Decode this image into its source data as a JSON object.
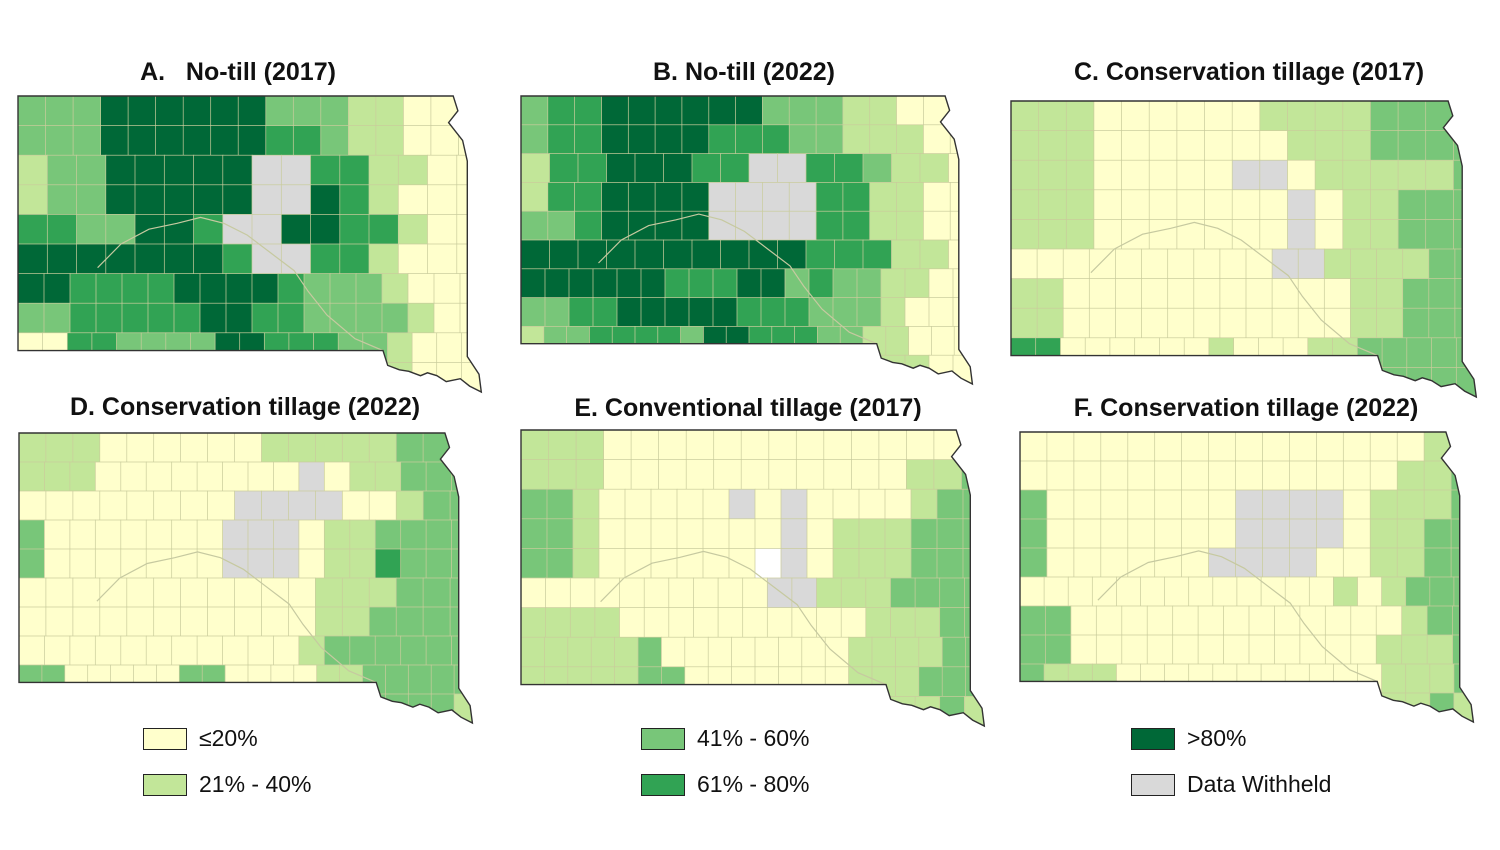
{
  "palette": {
    "c1": "#ffffcc",
    "c2": "#c2e699",
    "c3": "#78c679",
    "c4": "#31a354",
    "c5": "#006837",
    "nd": "#d9d9d9"
  },
  "panels": [
    {
      "title": "A.   No-till (2017)",
      "grid": [
        "33355555533322111",
        "33355555544322111",
        "23355555NN442211",
        "23355555NN542111",
        "4433554NN5544211",
        "55555554NN442111",
        "554444555543332111",
        "334444455443333211",
        "1144333355444332111",
        "1144333355444332111"
      ]
    },
    {
      "title": "B. No-till (2022)",
      "grid": [
        "34455555533322111",
        "34455554443322211",
        "24455544NN443221",
        "2445555NNNN442211",
        "3345555NNNN442211",
        "5555555555444221",
        "5555554445534332211",
        "3344555554443332111",
        "23344443554443322111",
        "2334444355444332211"
      ]
    },
    {
      "title": "C. Conservation tillage (2017)",
      "grid": [
        "22211111122223333",
        "22211111112223333",
        "22211111NN1222223",
        "2221111111N122333",
        "2221111111N122333",
        "1111111111NN222233",
        "221111111111122333",
        "221111111111122333",
        "4411111121112233333",
        "4411111122111223333"
      ]
    },
    {
      "title": "D. Conservation tillage (2022)",
      "grid": [
        "22211111122222333",
        "22211111111N122333",
        "11111111NNNN11233",
        "31111111NNN1223333",
        "31111111NNN1224333",
        "11111111111222333",
        "11111111111223333",
        "111111111112333333",
        "33111113311112233333",
        "33111113311112233332"
      ]
    },
    {
      "title": "E. Conventional tillage (2017)",
      "grid": [
        "22211111111111113",
        "22211111111111223",
        "33211111N1N1111233",
        "3321111111N1222333",
        "332111111WN1222333",
        "1111111111NN2223333",
        "2222111111111122233",
        "22222311111111222233",
        "22222331111111222333",
        "2222233111111122232"
      ]
    },
    {
      "title": "F. Conservation tillage (2022)",
      "grid": [
        "11111111111111123",
        "11111111111111223",
        "31111111NNNN12223",
        "31111111NNNN12233",
        "3111111NNNN112233",
        "1111111111111212333",
        "331111111111111233",
        "331111111111112223",
        "3222111111111112223",
        "3222111111111112232"
      ]
    }
  ],
  "legend": [
    {
      "label": "≤20%",
      "color": "#ffffcc"
    },
    {
      "label": "21% - 40%",
      "color": "#c2e699"
    },
    {
      "label": "41% - 60%",
      "color": "#78c679"
    },
    {
      "label": "61% - 80%",
      "color": "#31a354"
    },
    {
      "label": ">80%",
      "color": "#006837"
    },
    {
      "label": "Data Withheld",
      "color": "#d9d9d9"
    }
  ]
}
